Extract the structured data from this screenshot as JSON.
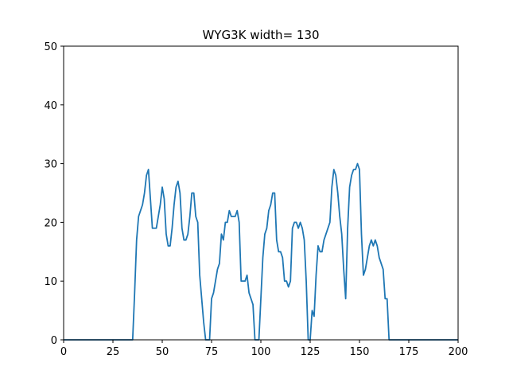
{
  "chart_data": {
    "type": "line",
    "title": "WYG3K width= 130",
    "xlabel": "",
    "ylabel": "",
    "xlim": [
      0,
      200
    ],
    "ylim": [
      0,
      50
    ],
    "xticks": [
      "0",
      "25",
      "50",
      "75",
      "100",
      "125",
      "150",
      "175",
      "200"
    ],
    "yticks": [
      "0",
      "10",
      "20",
      "30",
      "40",
      "50"
    ],
    "grid": false,
    "color": "#1f77b4",
    "series": [
      {
        "x": [
          0,
          35,
          36,
          37,
          38,
          39,
          40,
          41,
          42,
          43,
          44,
          45,
          46,
          47,
          48,
          49,
          50,
          51,
          52,
          53,
          54,
          55,
          56,
          57,
          58,
          59,
          60,
          61,
          62,
          63,
          64,
          65,
          66,
          67,
          68,
          69,
          70,
          71,
          72,
          73,
          74,
          75,
          76,
          77,
          78,
          79,
          80,
          81,
          82,
          83,
          84,
          85,
          86,
          87,
          88,
          89,
          90,
          91,
          92,
          93,
          94,
          95,
          96,
          97,
          98,
          99,
          100,
          101,
          102,
          103,
          104,
          105,
          106,
          107,
          108,
          109,
          110,
          111,
          112,
          113,
          114,
          115,
          116,
          117,
          118,
          119,
          120,
          121,
          122,
          123,
          124,
          125,
          126,
          127,
          128,
          129,
          130,
          131,
          132,
          133,
          134,
          135,
          136,
          137,
          138,
          139,
          140,
          141,
          142,
          143,
          144,
          145,
          146,
          147,
          148,
          149,
          150,
          151,
          152,
          153,
          154,
          155,
          156,
          157,
          158,
          159,
          160,
          161,
          162,
          163,
          164,
          165,
          166,
          200
        ],
        "y": [
          0,
          0,
          8,
          17,
          21,
          22,
          23,
          25,
          28,
          29,
          24,
          19,
          19,
          19,
          21,
          23,
          26,
          24,
          18,
          16,
          16,
          19,
          23,
          26,
          27,
          25,
          19,
          17,
          17,
          18,
          21,
          25,
          25,
          21,
          20,
          11,
          7,
          3,
          0,
          0,
          0,
          7,
          8,
          10,
          12,
          13,
          18,
          17,
          20,
          20,
          22,
          21,
          21,
          21,
          22,
          20,
          10,
          10,
          10,
          11,
          8,
          7,
          6,
          0,
          0,
          0,
          7,
          14,
          18,
          19,
          22,
          23,
          25,
          25,
          17,
          15,
          15,
          14,
          10,
          10,
          9,
          10,
          19,
          20,
          20,
          19,
          20,
          19,
          17,
          10,
          0,
          0,
          5,
          4,
          11,
          16,
          15,
          15,
          17,
          18,
          19,
          20,
          26,
          29,
          28,
          25,
          21,
          18,
          12,
          7,
          19,
          26,
          28,
          29,
          29,
          30,
          29,
          18,
          11,
          12,
          14,
          16,
          17,
          16,
          17,
          16,
          14,
          13,
          12,
          7,
          7,
          0,
          0,
          0
        ]
      }
    ]
  }
}
